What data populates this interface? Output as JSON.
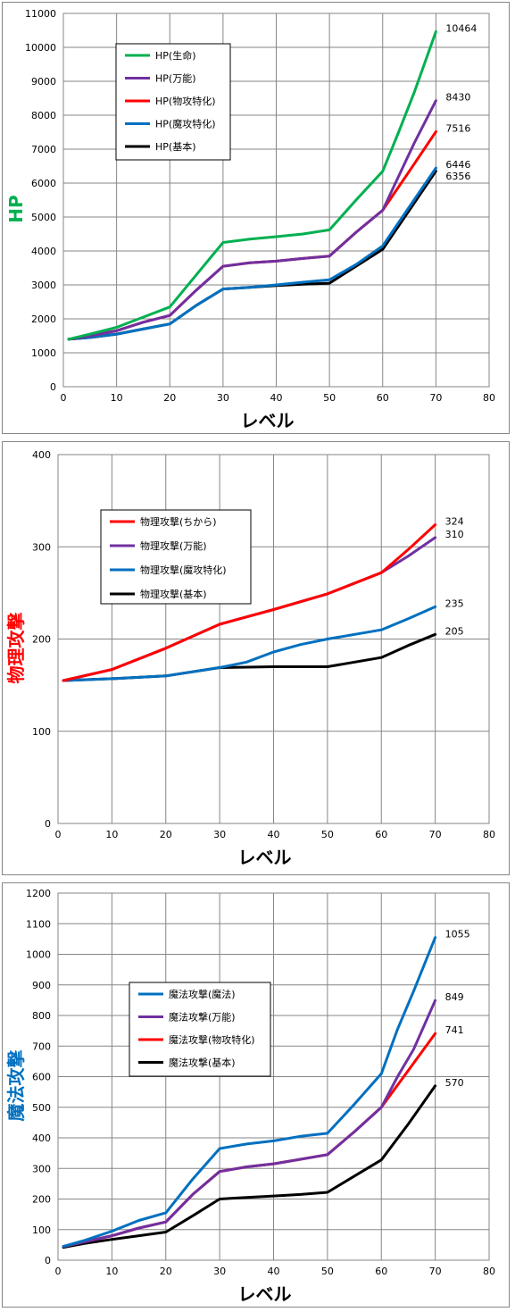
{
  "chart_data": [
    {
      "type": "line",
      "title": "",
      "xlabel": "レベル",
      "ylabel": "HP",
      "ylabel_color": "#00B050",
      "xlim": [
        0,
        80
      ],
      "ylim": [
        0,
        11000
      ],
      "xticks": [
        0,
        10,
        20,
        30,
        40,
        50,
        60,
        70,
        80
      ],
      "yticks": [
        0,
        1000,
        2000,
        3000,
        4000,
        5000,
        6000,
        7000,
        8000,
        9000,
        10000,
        11000
      ],
      "grid": true,
      "legend_placement": "top-left",
      "series": [
        {
          "name": "HP(生命)",
          "color": "#00B050",
          "end_label": "10464",
          "x": [
            1,
            5,
            10,
            15,
            20,
            25,
            30,
            35,
            40,
            45,
            50,
            55,
            60,
            63,
            66,
            70
          ],
          "y": [
            1400,
            1550,
            1750,
            2050,
            2350,
            3300,
            4250,
            4350,
            4420,
            4500,
            4620,
            5500,
            6350,
            7500,
            8700,
            10464
          ]
        },
        {
          "name": "HP(万能)",
          "color": "#7030A0",
          "end_label": "8430",
          "x": [
            1,
            5,
            10,
            15,
            20,
            25,
            30,
            35,
            40,
            45,
            50,
            55,
            60,
            63,
            66,
            70
          ],
          "y": [
            1400,
            1500,
            1650,
            1900,
            2100,
            2850,
            3550,
            3650,
            3700,
            3780,
            3850,
            4550,
            5200,
            6200,
            7200,
            8430
          ]
        },
        {
          "name": "HP(物攻特化)",
          "color": "#FF0000",
          "end_label": "7516",
          "x": [
            1,
            5,
            10,
            15,
            20,
            25,
            30,
            35,
            40,
            45,
            50,
            55,
            60,
            65,
            70
          ],
          "y": [
            1400,
            1500,
            1650,
            1900,
            2100,
            2850,
            3550,
            3650,
            3700,
            3780,
            3850,
            4550,
            5200,
            6350,
            7516
          ]
        },
        {
          "name": "HP(魔攻特化)",
          "color": "#0070C0",
          "end_label": "6446",
          "x": [
            1,
            5,
            10,
            15,
            20,
            25,
            30,
            35,
            40,
            45,
            50,
            55,
            60,
            65,
            70
          ],
          "y": [
            1400,
            1450,
            1550,
            1700,
            1850,
            2400,
            2880,
            2930,
            3000,
            3080,
            3150,
            3600,
            4150,
            5300,
            6446
          ]
        },
        {
          "name": "HP(基本)",
          "color": "#000000",
          "end_label": "6356",
          "x": [
            1,
            5,
            10,
            15,
            20,
            25,
            30,
            35,
            40,
            45,
            50,
            55,
            60,
            65,
            70
          ],
          "y": [
            1400,
            1450,
            1550,
            1700,
            1850,
            2400,
            2880,
            2930,
            2980,
            3020,
            3050,
            3550,
            4050,
            5200,
            6356
          ]
        }
      ]
    },
    {
      "type": "line",
      "title": "",
      "xlabel": "レベル",
      "ylabel": "物理攻撃",
      "ylabel_color": "#FF0000",
      "xlim": [
        0,
        80
      ],
      "ylim": [
        0,
        400
      ],
      "xticks": [
        0,
        10,
        20,
        30,
        40,
        50,
        60,
        70,
        80
      ],
      "yticks": [
        0,
        100,
        200,
        300,
        400
      ],
      "grid": true,
      "legend_placement": "top-left",
      "series": [
        {
          "name": "物理攻撃(ちから)",
          "color": "#FF0000",
          "end_label": "324",
          "x": [
            1,
            10,
            20,
            30,
            40,
            50,
            60,
            65,
            70
          ],
          "y": [
            155,
            167,
            190,
            216,
            232,
            249,
            272,
            297,
            324
          ]
        },
        {
          "name": "物理攻撃(万能)",
          "color": "#7030A0",
          "end_label": "310",
          "x": [
            1,
            10,
            20,
            30,
            40,
            50,
            60,
            65,
            70
          ],
          "y": [
            155,
            167,
            190,
            216,
            232,
            249,
            272,
            290,
            310
          ]
        },
        {
          "name": "物理攻撃(魔攻特化)",
          "color": "#0070C0",
          "end_label": "235",
          "x": [
            1,
            10,
            20,
            30,
            35,
            40,
            45,
            50,
            60,
            65,
            70
          ],
          "y": [
            155,
            157,
            160,
            169,
            175,
            186,
            194,
            200,
            210,
            222,
            235
          ]
        },
        {
          "name": "物理攻撃(基本)",
          "color": "#000000",
          "end_label": "205",
          "x": [
            1,
            10,
            20,
            30,
            40,
            50,
            60,
            65,
            70
          ],
          "y": [
            155,
            157,
            160,
            169,
            170,
            170,
            180,
            193,
            205
          ]
        }
      ]
    },
    {
      "type": "line",
      "title": "",
      "xlabel": "レベル",
      "ylabel": "魔法攻撃",
      "ylabel_color": "#0070C0",
      "xlim": [
        0,
        80
      ],
      "ylim": [
        0,
        1200
      ],
      "xticks": [
        0,
        10,
        20,
        30,
        40,
        50,
        60,
        70,
        80
      ],
      "yticks": [
        0,
        100,
        200,
        300,
        400,
        500,
        600,
        700,
        800,
        900,
        1000,
        1100,
        1200
      ],
      "grid": true,
      "legend_placement": "top-left",
      "series": [
        {
          "name": "魔法攻撃(魔法)",
          "color": "#0070C0",
          "end_label": "1055",
          "x": [
            1,
            5,
            10,
            15,
            20,
            25,
            30,
            35,
            40,
            45,
            50,
            55,
            60,
            63,
            66,
            70
          ],
          "y": [
            45,
            65,
            95,
            130,
            155,
            265,
            365,
            380,
            390,
            405,
            415,
            510,
            610,
            755,
            880,
            1055
          ]
        },
        {
          "name": "魔法攻撃(万能)",
          "color": "#7030A0",
          "end_label": "849",
          "x": [
            1,
            5,
            10,
            15,
            20,
            25,
            30,
            35,
            40,
            45,
            50,
            55,
            60,
            63,
            66,
            70
          ],
          "y": [
            45,
            60,
            80,
            105,
            125,
            215,
            290,
            305,
            315,
            330,
            345,
            420,
            500,
            600,
            690,
            849
          ]
        },
        {
          "name": "魔法攻撃(物攻特化)",
          "color": "#FF0000",
          "end_label": "741",
          "x": [
            1,
            5,
            10,
            15,
            20,
            25,
            30,
            35,
            40,
            45,
            50,
            55,
            60,
            65,
            70
          ],
          "y": [
            45,
            60,
            80,
            105,
            125,
            215,
            290,
            305,
            315,
            330,
            345,
            420,
            500,
            620,
            741
          ]
        },
        {
          "name": "魔法攻撃(基本)",
          "color": "#000000",
          "end_label": "570",
          "x": [
            1,
            5,
            10,
            15,
            20,
            25,
            30,
            35,
            40,
            45,
            50,
            55,
            60,
            65,
            70
          ],
          "y": [
            42,
            55,
            68,
            80,
            92,
            145,
            200,
            205,
            210,
            215,
            222,
            275,
            328,
            445,
            570
          ]
        }
      ]
    }
  ]
}
